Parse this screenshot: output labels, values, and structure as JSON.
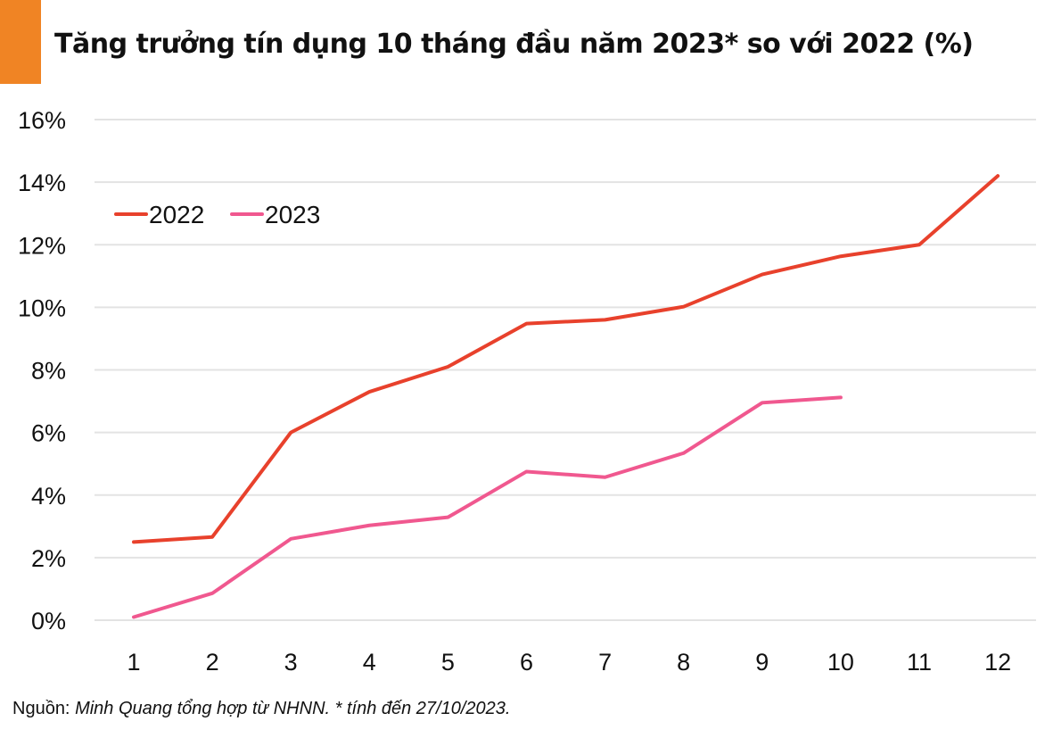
{
  "header": {
    "title": "Tăng trưởng tín dụng 10 tháng đầu năm 2023* so với 2022 (%)",
    "accent_color": "#f08424"
  },
  "footer": {
    "source_label": "Nguồn:",
    "source_text": "Minh Quang tổng hợp từ NHNN. * tính đến 27/10/2023."
  },
  "chart_data": {
    "type": "line",
    "title": "Tăng trưởng tín dụng 10 tháng đầu năm 2023* so với 2022 (%)",
    "xlabel": "",
    "ylabel": "",
    "x": [
      1,
      2,
      3,
      4,
      5,
      6,
      7,
      8,
      9,
      10,
      11,
      12
    ],
    "x_tick_labels": [
      "1",
      "2",
      "3",
      "4",
      "5",
      "6",
      "7",
      "8",
      "9",
      "10",
      "11",
      "12"
    ],
    "ylim": [
      0,
      16
    ],
    "y_ticks": [
      0,
      2,
      4,
      6,
      8,
      10,
      12,
      14,
      16
    ],
    "y_tick_labels": [
      "0%",
      "2%",
      "4%",
      "6%",
      "8%",
      "10%",
      "12%",
      "14%",
      "16%"
    ],
    "grid": true,
    "legend_position": "top-left",
    "series": [
      {
        "name": "2022",
        "color": "#e8412c",
        "values": [
          2.5,
          2.66,
          6.0,
          7.3,
          8.1,
          9.48,
          9.6,
          10.02,
          11.05,
          11.63,
          12.0,
          14.2
        ]
      },
      {
        "name": "2023",
        "color": "#f0588f",
        "values": [
          0.1,
          0.86,
          2.6,
          3.03,
          3.29,
          4.75,
          4.57,
          5.34,
          6.95,
          7.12
        ]
      }
    ]
  }
}
